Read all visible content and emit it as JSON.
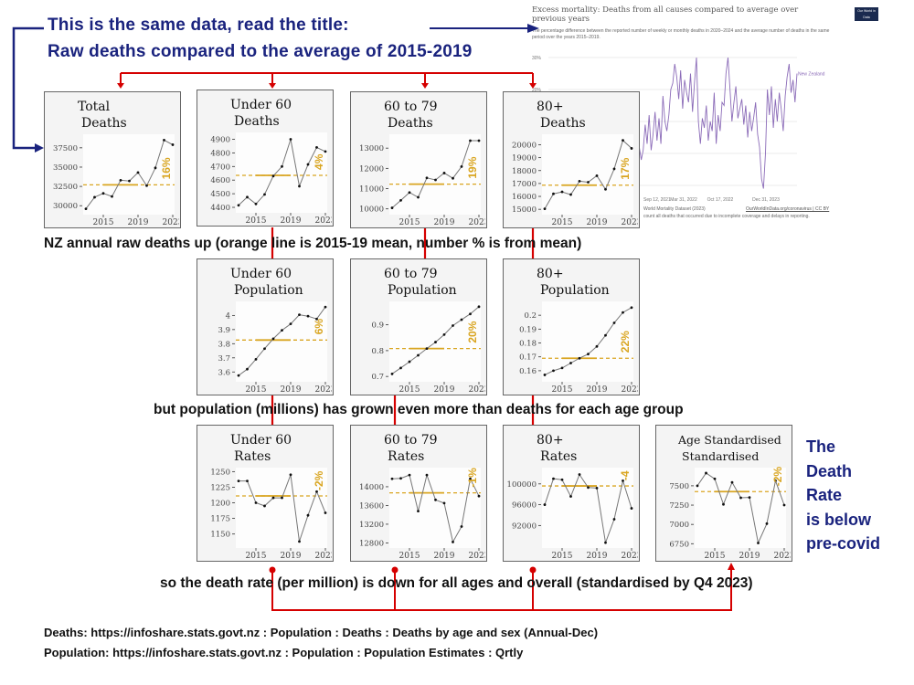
{
  "header": {
    "line1": "This is the same data, read the title:",
    "line2": "Raw deaths compared to the average of 2015-2019"
  },
  "captions": {
    "deaths": "NZ annual raw deaths up (orange line is 2015-19 mean, number % is from mean)",
    "population": "but population (millions) has grown even more than deaths for each age group",
    "rates": "so the death rate (per million) is down for all ages and overall (standardised by Q4 2023)"
  },
  "side_note": [
    "The",
    "Death",
    "Rate",
    "is below",
    "pre-covid"
  ],
  "footer": {
    "deaths_source": "Deaths: https://infoshare.stats.govt.nz : Population : Deaths : Deaths by age and sex (Annual-Dec)",
    "population_source": "Population: https://infoshare.stats.govt.nz : Population : Population Estimates : Qrtly"
  },
  "colors": {
    "title_blue": "#1a237e",
    "connector_red": "#d50000",
    "mean_orange": "#d9a520",
    "owid_purple": "#8b6bb8"
  },
  "owid": {
    "title": "Excess mortality: Deaths from all causes compared to average over previous years",
    "subtitle": "The percentage difference between the reported number of weekly or monthly deaths in 2020–2024 and the average number of deaths in the same period over the years 2015–2019.",
    "logo": "Our World in Data",
    "y_ticks": [
      "30%",
      "20%"
    ],
    "x_ticks": [
      "Sep 12, 2021",
      "Mar 31, 2022",
      "Oct 17, 2022",
      "Dec 31, 2023"
    ],
    "series_label": "New Zealand",
    "source": "World Mortality Dataset (2023)",
    "link": "OurWorldInData.org/coronavirus | CC BY",
    "note": "count all deaths that occurred due to incomplete coverage and delays in reporting."
  },
  "chart_data": [
    {
      "type": "line",
      "id": "total-deaths",
      "title": [
        "Total",
        "Deaths"
      ],
      "x": [
        2013,
        2014,
        2015,
        2016,
        2017,
        2018,
        2019,
        2020,
        2021,
        2022,
        2023
      ],
      "values": [
        29600,
        31100,
        31600,
        31200,
        33300,
        33200,
        34300,
        32600,
        34900,
        38500,
        37900
      ],
      "mean_2015_2019": 32700,
      "pct_label": "16%",
      "ylim": [
        29200,
        38900
      ],
      "y_ticks": [
        30000,
        32500,
        35000,
        37500
      ],
      "x_ticks": [
        2015,
        2019,
        2023
      ]
    },
    {
      "type": "line",
      "id": "under60-deaths",
      "title": [
        "Under 60",
        "Deaths"
      ],
      "x": [
        2013,
        2014,
        2015,
        2016,
        2017,
        2018,
        2019,
        2020,
        2021,
        2022,
        2023
      ],
      "values": [
        4415,
        4475,
        4425,
        4495,
        4630,
        4700,
        4900,
        4555,
        4715,
        4840,
        4810
      ],
      "mean_2015_2019": 4635,
      "pct_label": "4%",
      "ylim": [
        4380,
        4930
      ],
      "y_ticks": [
        4400,
        4500,
        4600,
        4700,
        4800,
        4900
      ],
      "x_ticks": [
        2015,
        2019,
        2023
      ]
    },
    {
      "type": "line",
      "id": "60to79-deaths",
      "title": [
        "60 to 79",
        "Deaths"
      ],
      "x": [
        2013,
        2014,
        2015,
        2016,
        2017,
        2018,
        2019,
        2020,
        2021,
        2022,
        2023
      ],
      "values": [
        10050,
        10420,
        10810,
        10570,
        11530,
        11430,
        11770,
        11510,
        12090,
        13370,
        13370
      ],
      "mean_2015_2019": 11220,
      "pct_label": "19%",
      "ylim": [
        9850,
        13550
      ],
      "y_ticks": [
        10000,
        11000,
        12000,
        13000
      ],
      "x_ticks": [
        2015,
        2019,
        2023
      ]
    },
    {
      "type": "line",
      "id": "80plus-deaths",
      "title": [
        "80+",
        "Deaths"
      ],
      "x": [
        2013,
        2014,
        2015,
        2016,
        2017,
        2018,
        2019,
        2020,
        2021,
        2022,
        2023
      ],
      "values": [
        15040,
        16200,
        16350,
        16140,
        17180,
        17100,
        17600,
        16550,
        18130,
        20340,
        19720
      ],
      "mean_2015_2019": 16870,
      "pct_label": "17%",
      "ylim": [
        14800,
        20600
      ],
      "y_ticks": [
        15000,
        16000,
        17000,
        18000,
        19000,
        20000
      ],
      "x_ticks": [
        2015,
        2019,
        2023
      ]
    },
    {
      "type": "line",
      "id": "under60-population",
      "title": [
        "Under 60",
        "Population"
      ],
      "x": [
        2013,
        2014,
        2015,
        2016,
        2017,
        2018,
        2019,
        2020,
        2021,
        2022,
        2023
      ],
      "values": [
        3.575,
        3.62,
        3.69,
        3.765,
        3.835,
        3.895,
        3.94,
        4.005,
        3.995,
        3.975,
        4.06
      ],
      "mean_2015_2019": 3.826,
      "pct_label": "6%",
      "ylim": [
        3.55,
        4.08
      ],
      "y_ticks": [
        3.6,
        3.7,
        3.8,
        3.9,
        4.0
      ],
      "x_ticks": [
        2015,
        2019,
        2023
      ]
    },
    {
      "type": "line",
      "id": "60to79-population",
      "title": [
        "60 to 79",
        "Population"
      ],
      "x": [
        2013,
        2014,
        2015,
        2016,
        2017,
        2018,
        2019,
        2020,
        2021,
        2022,
        2023
      ],
      "values": [
        0.71,
        0.733,
        0.757,
        0.782,
        0.808,
        0.833,
        0.862,
        0.897,
        0.92,
        0.942,
        0.97
      ],
      "mean_2015_2019": 0.808,
      "pct_label": "20%",
      "ylim": [
        0.69,
        0.98
      ],
      "y_ticks": [
        0.7,
        0.8,
        0.9
      ],
      "x_ticks": [
        2015,
        2019,
        2023
      ]
    },
    {
      "type": "line",
      "id": "80plus-population",
      "title": [
        "80+",
        "Population"
      ],
      "x": [
        2013,
        2014,
        2015,
        2016,
        2017,
        2018,
        2019,
        2020,
        2021,
        2022,
        2023
      ],
      "values": [
        0.157,
        0.16,
        0.162,
        0.1655,
        0.169,
        0.172,
        0.1775,
        0.1855,
        0.1945,
        0.202,
        0.2055
      ],
      "mean_2015_2019": 0.169,
      "pct_label": "22%",
      "ylim": [
        0.154,
        0.208
      ],
      "y_ticks": [
        0.16,
        0.17,
        0.18,
        0.19,
        0.2
      ],
      "x_ticks": [
        2015,
        2019,
        2023
      ]
    },
    {
      "type": "line",
      "id": "under60-rates",
      "title": [
        "Under 60",
        "Rates"
      ],
      "x": [
        2013,
        2014,
        2015,
        2016,
        2017,
        2018,
        2019,
        2020,
        2021,
        2022,
        2023
      ],
      "values": [
        1235,
        1235,
        1200,
        1195,
        1208,
        1208,
        1245,
        1138,
        1180,
        1218,
        1184
      ],
      "mean_2015_2019": 1211,
      "pct_label": "-2%",
      "ylim": [
        1132,
        1252
      ],
      "y_ticks": [
        1150,
        1175,
        1200,
        1225,
        1250
      ],
      "x_ticks": [
        2015,
        2019,
        2023
      ]
    },
    {
      "type": "line",
      "id": "60to79-rates",
      "title": [
        "60 to 79",
        "Rates"
      ],
      "x": [
        2013,
        2014,
        2015,
        2016,
        2017,
        2018,
        2019,
        2020,
        2021,
        2022,
        2023
      ],
      "values": [
        14170,
        14180,
        14250,
        13480,
        14250,
        13720,
        13650,
        12820,
        13150,
        14170,
        13800
      ],
      "mean_2015_2019": 13870,
      "pct_label": "-1%",
      "ylim": [
        12750,
        14350
      ],
      "y_ticks": [
        12800,
        13200,
        13600,
        14000
      ],
      "x_ticks": [
        2015,
        2019,
        2023
      ]
    },
    {
      "type": "line",
      "id": "80plus-rates",
      "title": [
        "80+",
        "Rates"
      ],
      "x": [
        2013,
        2014,
        2015,
        2016,
        2017,
        2018,
        2019,
        2020,
        2021,
        2022,
        2023
      ],
      "values": [
        96000,
        101000,
        100800,
        97600,
        101800,
        99300,
        99200,
        88700,
        93200,
        100600,
        95300
      ],
      "mean_2015_2019": 99600,
      "pct_label": "-4",
      "ylim": [
        88200,
        102600
      ],
      "y_ticks": [
        92000,
        96000,
        100000
      ],
      "x_ticks": [
        2015,
        2019,
        2023
      ]
    },
    {
      "type": "line",
      "id": "age-standardised-rates",
      "title": [
        "Age Standardised",
        "Standardised"
      ],
      "x": [
        2013,
        2014,
        2015,
        2016,
        2017,
        2018,
        2019,
        2020,
        2021,
        2022,
        2023
      ],
      "values": [
        7500,
        7665,
        7590,
        7260,
        7545,
        7345,
        7350,
        6760,
        7010,
        7565,
        7250
      ],
      "mean_2015_2019": 7425,
      "pct_label": "-2%",
      "ylim": [
        6730,
        7700
      ],
      "y_ticks": [
        6750,
        7000,
        7250,
        7500
      ],
      "x_ticks": [
        2015,
        2019,
        2023
      ]
    },
    {
      "type": "line",
      "id": "owid-excess-mortality",
      "series": [
        {
          "name": "New Zealand",
          "values": [
            4,
            6,
            2,
            5,
            1,
            4,
            -3,
            -6,
            -2,
            2,
            -2,
            1,
            9,
            3,
            12,
            1,
            6,
            13,
            4,
            11,
            3,
            18,
            10,
            7,
            12,
            20,
            22,
            28,
            24,
            17,
            26,
            14,
            23,
            19,
            16,
            25,
            13,
            22,
            30,
            10,
            3,
            11,
            8,
            15,
            4,
            10,
            7,
            19,
            3,
            12,
            7,
            16,
            15,
            25,
            30,
            20,
            10,
            16,
            21,
            11,
            14,
            17,
            9,
            15,
            5,
            13,
            7,
            11,
            16,
            6,
            2,
            -8,
            -11,
            0,
            20,
            12,
            21,
            8,
            17,
            10,
            19,
            14,
            7,
            18,
            24,
            28,
            19,
            23,
            16,
            25
          ]
        }
      ],
      "y_ticks": [
        30,
        20
      ],
      "ylim": [
        -15,
        33
      ]
    }
  ]
}
